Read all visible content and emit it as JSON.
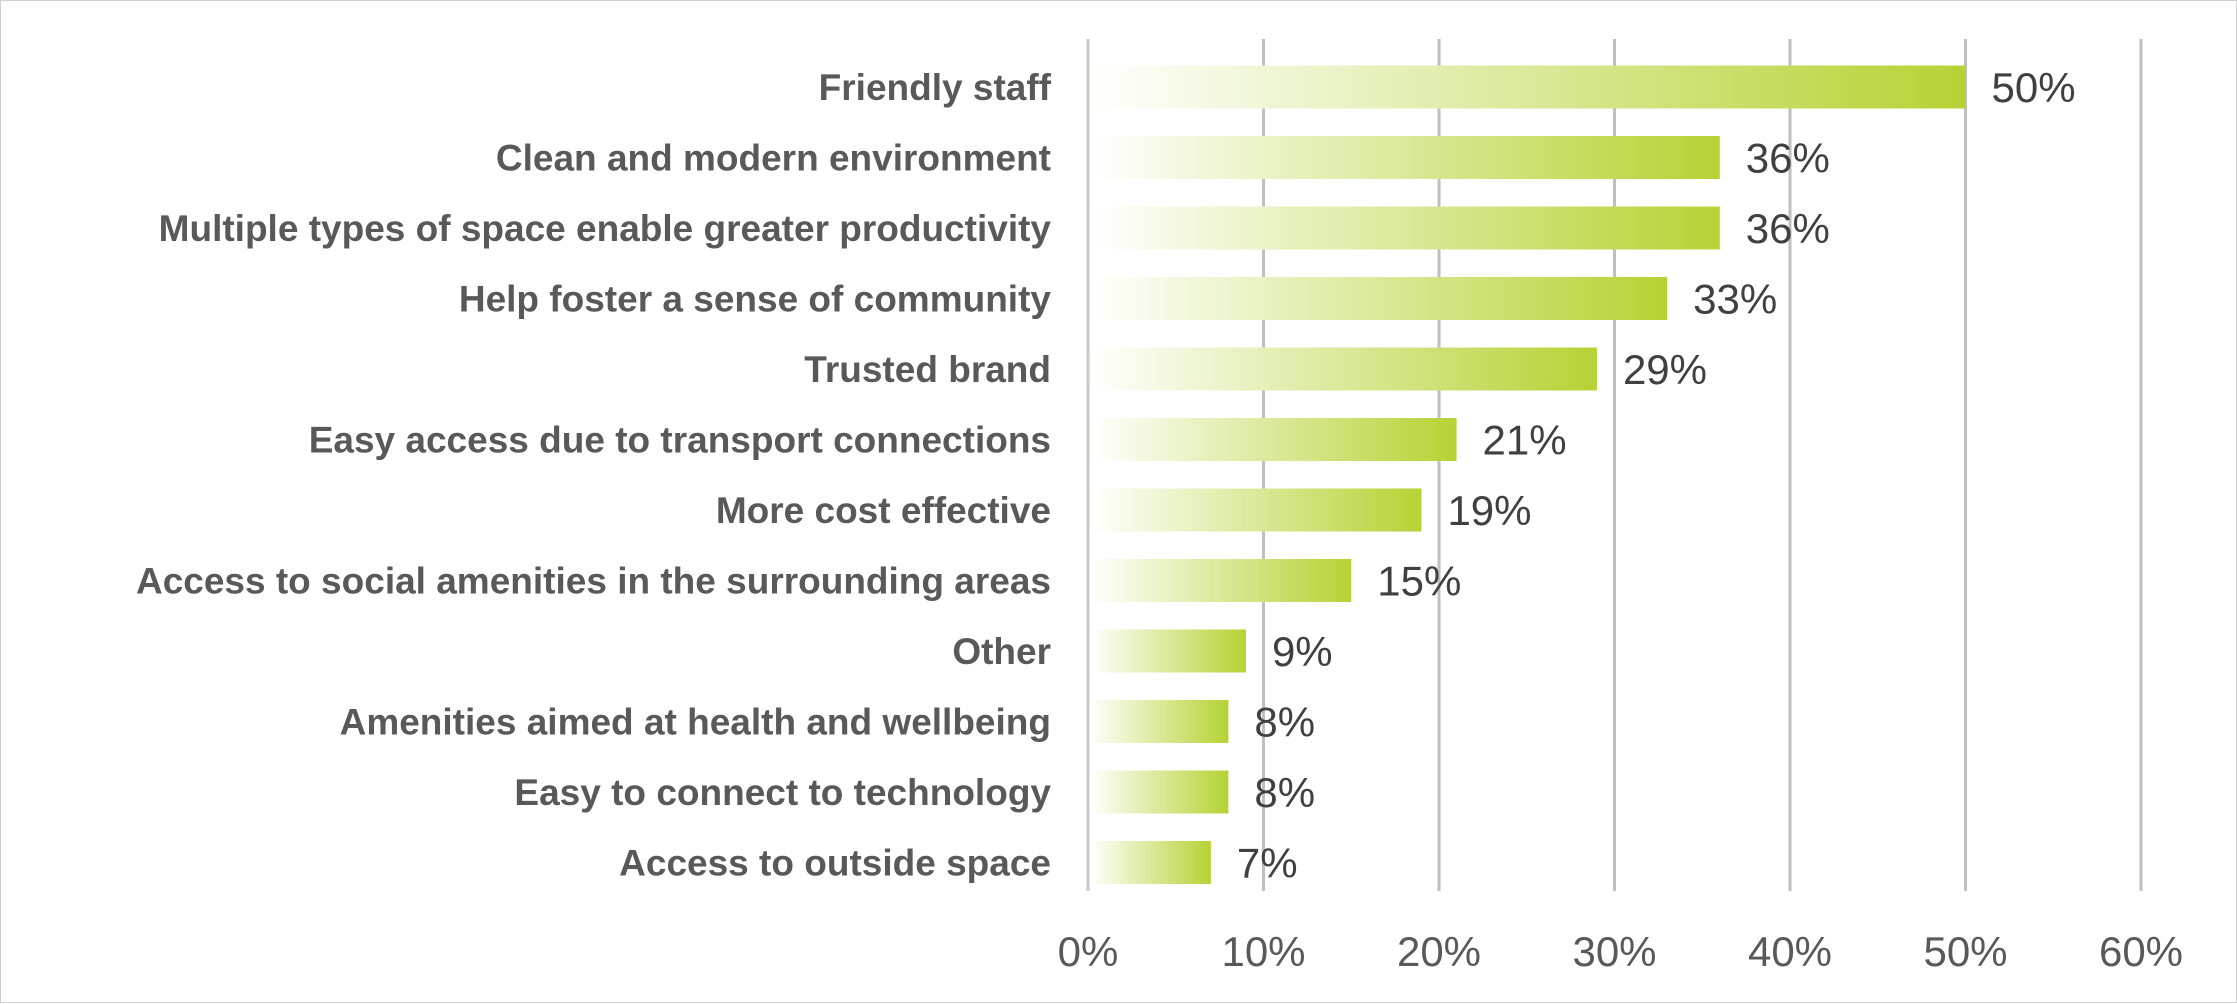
{
  "chart_data": {
    "type": "bar",
    "orientation": "horizontal",
    "title": "",
    "xlabel": "",
    "ylabel": "",
    "categories": [
      "Friendly staff",
      "Clean and modern environment",
      "Multiple types of space enable greater productivity",
      "Help foster a sense of community",
      "Trusted brand",
      "Easy access due to transport connections",
      "More cost effective",
      "Access to social amenities in the surrounding areas",
      "Other",
      "Amenities aimed at health and wellbeing",
      "Easy to connect to technology",
      "Access to outside space"
    ],
    "values": [
      50,
      36,
      36,
      33,
      29,
      21,
      19,
      15,
      9,
      8,
      8,
      7
    ],
    "value_labels": [
      "50%",
      "36%",
      "36%",
      "33%",
      "29%",
      "21%",
      "19%",
      "15%",
      "9%",
      "8%",
      "8%",
      "7%"
    ],
    "xlim": [
      0,
      60
    ],
    "xticks": [
      0,
      10,
      20,
      30,
      40,
      50,
      60
    ],
    "xtick_labels": [
      "0%",
      "10%",
      "20%",
      "30%",
      "40%",
      "50%",
      "60%"
    ],
    "grid": true,
    "legend": "none",
    "bar_color": "#b5d334",
    "bar_gradient_start": "#ffffff"
  }
}
